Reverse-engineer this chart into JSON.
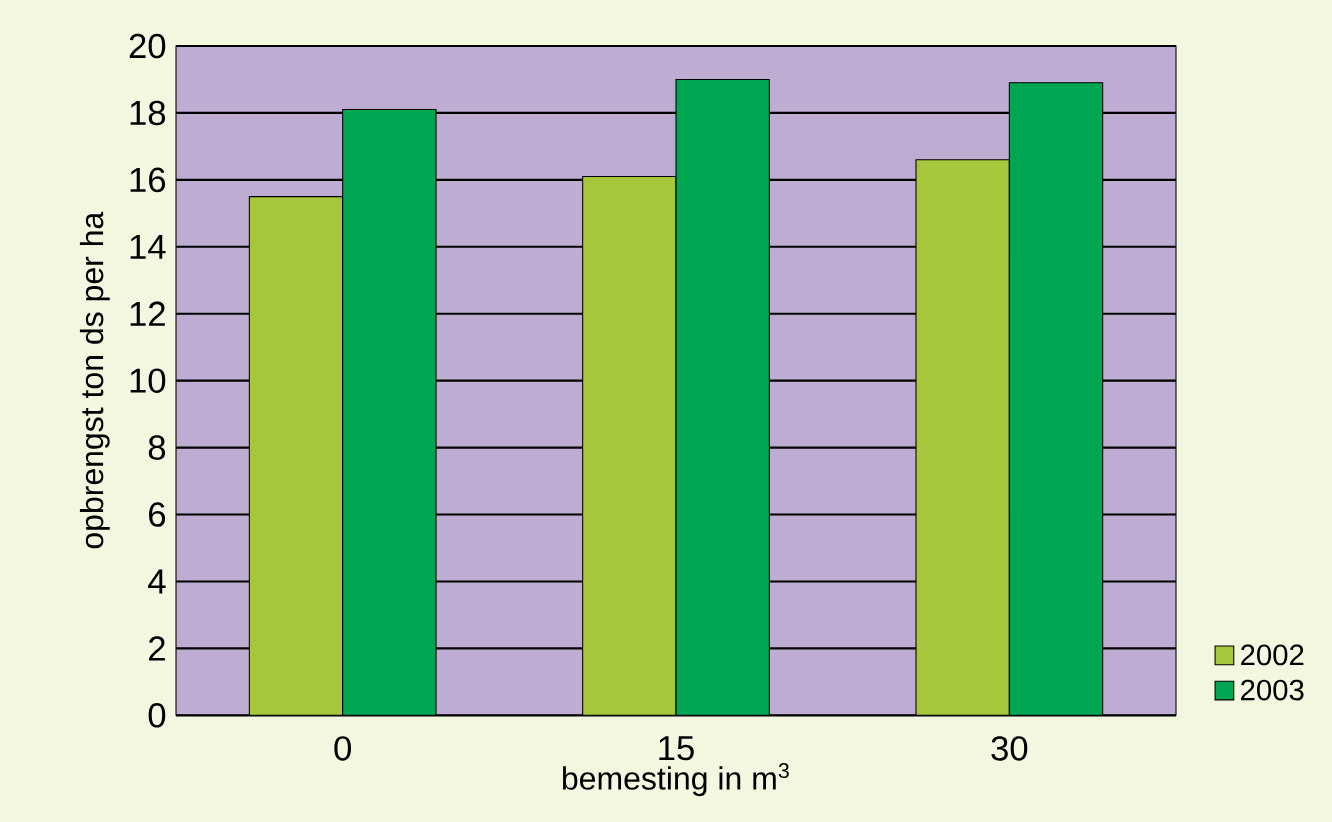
{
  "chart_data": {
    "type": "bar",
    "xlabel": "bemesting in m$^{3}$",
    "ylabel": "opbrengst ton ds per ha",
    "categories": [
      "0",
      "15",
      "30"
    ],
    "series": [
      {
        "name": "2002",
        "color": "#a6c63c",
        "values": [
          15.5,
          16.1,
          16.6
        ]
      },
      {
        "name": "2003",
        "color": "#00a651",
        "values": [
          18.1,
          19.0,
          18.9
        ]
      }
    ],
    "ylim": [
      0,
      20
    ],
    "yticks": [
      0,
      2,
      4,
      6,
      8,
      10,
      12,
      14,
      16,
      18,
      20
    ],
    "grid": "y",
    "legend": "bottom right"
  }
}
